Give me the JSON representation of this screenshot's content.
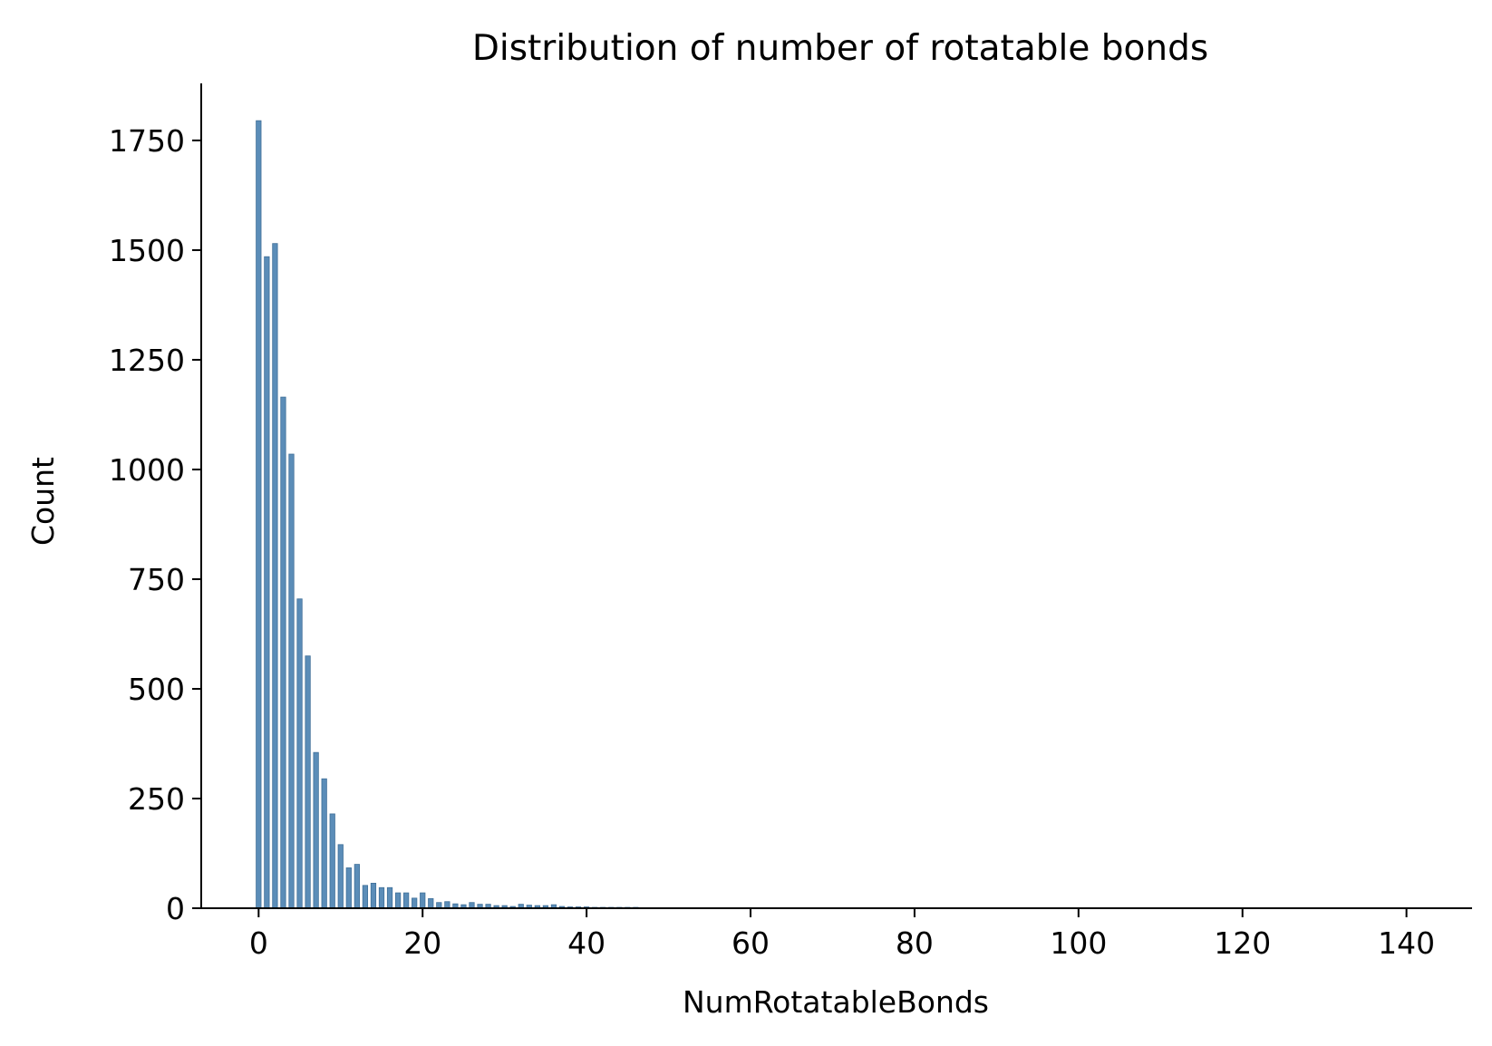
{
  "chart_data": {
    "type": "bar",
    "title": "Distribution of number of rotatable bonds",
    "xlabel": "NumRotatableBonds",
    "ylabel": "Count",
    "xlim": [
      -7,
      148
    ],
    "ylim": [
      0,
      1880
    ],
    "xticks": [
      0,
      20,
      40,
      60,
      80,
      100,
      120,
      140
    ],
    "yticks": [
      0,
      250,
      500,
      750,
      1000,
      1250,
      1500,
      1750
    ],
    "bin_width": 0.6,
    "bar_color": "#5b8db8",
    "bar_edge_color": "#3f6f98",
    "grid": false,
    "legend": "none",
    "categories": [
      0,
      1,
      2,
      3,
      4,
      5,
      6,
      7,
      8,
      9,
      10,
      11,
      12,
      13,
      14,
      15,
      16,
      17,
      18,
      19,
      20,
      21,
      22,
      23,
      24,
      25,
      26,
      27,
      28,
      29,
      30,
      31,
      32,
      33,
      34,
      35,
      36,
      37,
      38,
      39,
      40,
      41,
      42,
      43,
      44,
      45,
      46,
      47,
      48,
      49,
      50,
      51,
      52,
      53,
      54,
      55,
      56,
      57,
      58,
      59,
      60,
      61,
      62,
      63,
      64,
      65,
      66,
      67,
      68
    ],
    "values": [
      1795,
      1485,
      1515,
      1165,
      1035,
      705,
      575,
      355,
      295,
      215,
      145,
      92,
      100,
      52,
      57,
      47,
      47,
      35,
      35,
      23,
      35,
      22,
      13,
      15,
      10,
      8,
      13,
      9,
      9,
      6,
      6,
      4,
      9,
      7,
      6,
      6,
      8,
      4,
      3,
      3,
      3,
      2,
      2,
      2,
      2,
      2,
      2,
      1,
      1,
      1,
      1,
      1,
      1,
      1,
      1,
      1,
      1,
      1,
      1,
      1,
      1,
      1,
      1,
      1,
      1,
      1,
      1,
      1,
      1
    ]
  }
}
